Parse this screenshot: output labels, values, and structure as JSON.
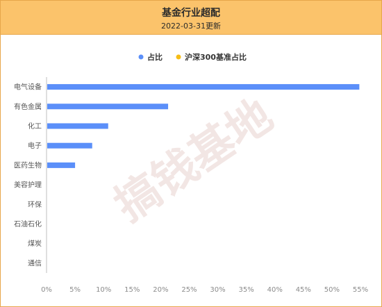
{
  "header": {
    "title": "基金行业超配",
    "subtitle": "2022-03-31更新"
  },
  "watermark": "搞钱基地",
  "colors": {
    "header_bg": "#fbc36b",
    "bar": "#5b8ff9",
    "legend_series2": "#f6bd16"
  },
  "chart_data": {
    "type": "bar",
    "orientation": "horizontal",
    "categories": [
      "电气设备",
      "有色金属",
      "化工",
      "电子",
      "医药生物",
      "美容护理",
      "环保",
      "石油石化",
      "煤炭",
      "通信"
    ],
    "series": [
      {
        "name": "占比",
        "values": [
          54.8,
          21.3,
          10.8,
          8.0,
          5.0,
          0,
          0,
          0,
          0,
          0
        ]
      },
      {
        "name": "沪深300基准占比",
        "values": [
          0,
          0,
          0,
          0,
          0,
          0,
          0,
          0,
          0,
          0
        ]
      }
    ],
    "xlim": [
      0,
      55
    ],
    "x_ticks": [
      "0%",
      "5%",
      "10%",
      "15%",
      "20%",
      "25%",
      "30%",
      "35%",
      "40%",
      "45%",
      "50%",
      "55%"
    ],
    "grid": false,
    "legend_position": "top-center"
  }
}
